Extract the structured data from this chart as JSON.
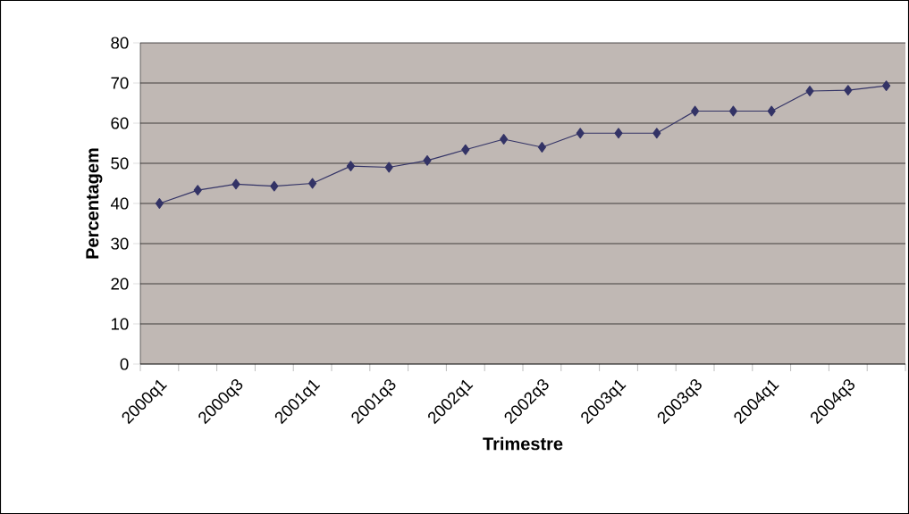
{
  "chart_data": {
    "type": "line",
    "xlabel": "Trimestre",
    "ylabel": "Percentagem",
    "categories": [
      "2000q1",
      null,
      "2000q3",
      null,
      "2001q1",
      null,
      "2001q3",
      null,
      "2002q1",
      null,
      "2002q3",
      null,
      "2003q1",
      null,
      "2003q3",
      null,
      "2004q1",
      null,
      "2004q3",
      null
    ],
    "series": [
      {
        "color": "#333366",
        "values": [
          40,
          43.3,
          44.8,
          44.3,
          45,
          49.3,
          49,
          50.7,
          53.4,
          56,
          54,
          57.5,
          57.5,
          57.5,
          63,
          63,
          63,
          68,
          68.2,
          69.3
        ]
      }
    ],
    "ylim": [
      0,
      80
    ],
    "yticks": [
      0,
      10,
      20,
      30,
      40,
      50,
      60,
      70,
      80
    ],
    "grid": "y",
    "marker": "diamond",
    "line_style": "solid"
  }
}
